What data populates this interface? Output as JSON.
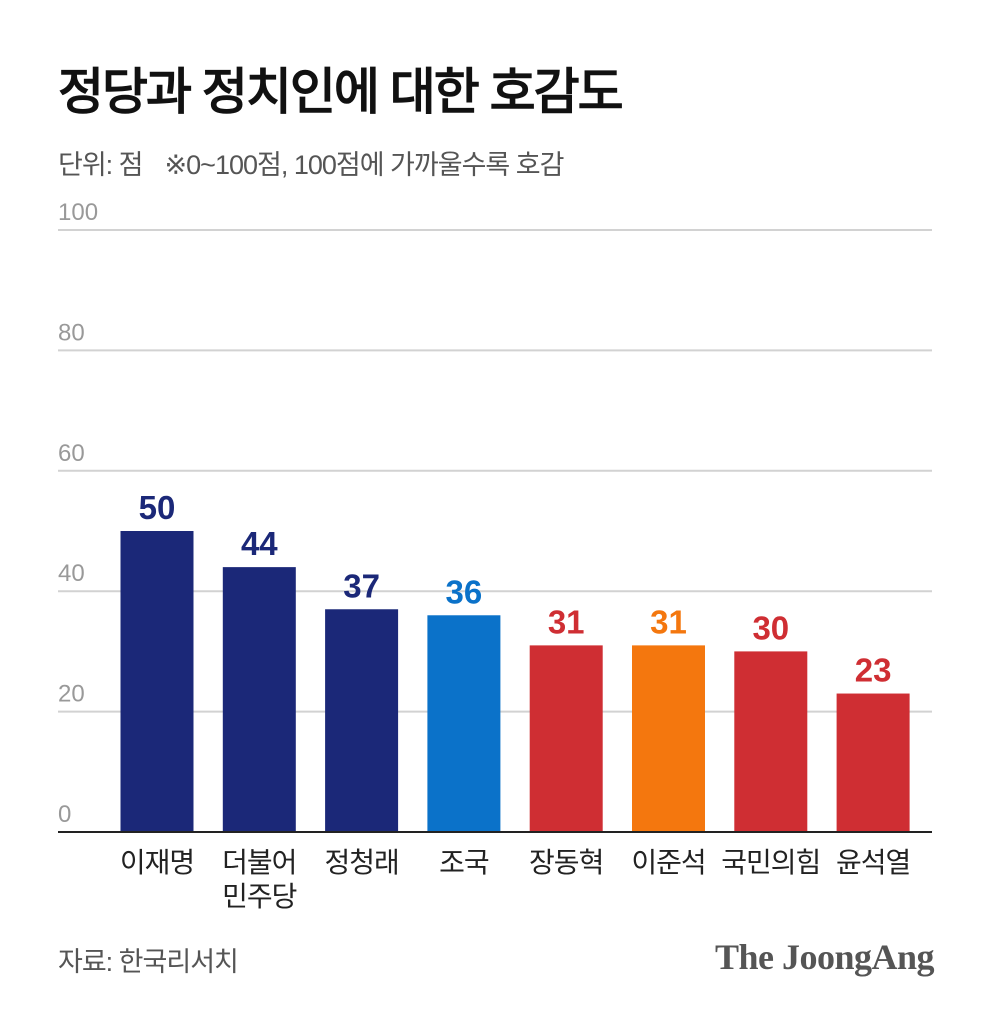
{
  "header": {
    "title": "정당과 정치인에 대한 호감도",
    "unit": "단위: 점",
    "note": "※0~100점, 100점에 가까울수록 호감"
  },
  "chart_data": {
    "type": "bar",
    "title": "정당과 정치인에 대한 호감도",
    "categories": [
      {
        "lines": [
          "이재명"
        ]
      },
      {
        "lines": [
          "더불어",
          "민주당"
        ]
      },
      {
        "lines": [
          "정청래"
        ]
      },
      {
        "lines": [
          "조국"
        ]
      },
      {
        "lines": [
          "장동혁"
        ]
      },
      {
        "lines": [
          "이준석"
        ]
      },
      {
        "lines": [
          "국민의힘"
        ]
      },
      {
        "lines": [
          "윤석열"
        ]
      }
    ],
    "values": [
      50,
      44,
      37,
      36,
      31,
      31,
      30,
      23
    ],
    "colors": [
      "#1b2878",
      "#1b2878",
      "#1b2878",
      "#0b72c9",
      "#cf2e33",
      "#f4770e",
      "#cf2e33",
      "#cf2e33"
    ],
    "ylim": [
      0,
      100
    ],
    "yticks": [
      0,
      20,
      40,
      60,
      80,
      100
    ],
    "grid": true,
    "xlabel": "",
    "ylabel": ""
  },
  "footer": {
    "source": "자료: 한국리서치",
    "brand": "The JoongAng"
  }
}
